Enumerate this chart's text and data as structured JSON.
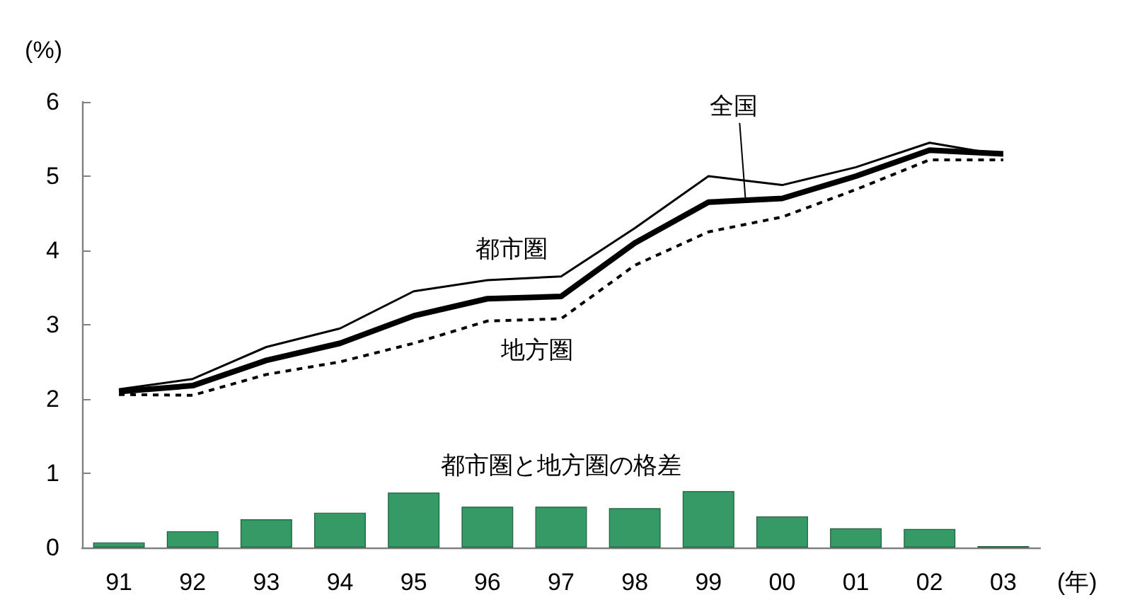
{
  "chart_data": {
    "type": "line",
    "xlabel": "(年)",
    "ylabel": "(%)",
    "categories": [
      "91",
      "92",
      "93",
      "94",
      "95",
      "96",
      "97",
      "98",
      "99",
      "00",
      "01",
      "02",
      "03"
    ],
    "ylim": [
      0,
      6
    ],
    "yticks": [
      0,
      1,
      2,
      3,
      4,
      5,
      6
    ],
    "grid": false,
    "legend": false,
    "marker": "none",
    "series": [
      {
        "name": "都市圏と地方圏の格差",
        "type": "bar",
        "color": "#359a66",
        "values": [
          0.07,
          0.22,
          0.38,
          0.47,
          0.74,
          0.55,
          0.55,
          0.53,
          0.76,
          0.42,
          0.26,
          0.25,
          0.02
        ]
      },
      {
        "name": "全国",
        "color": "#000000",
        "line_style": "solid",
        "values": [
          2.1,
          2.18,
          2.52,
          2.75,
          3.12,
          3.35,
          3.38,
          4.1,
          4.65,
          4.7,
          5.0,
          5.35,
          5.3
        ]
      },
      {
        "name": "都市圏",
        "color": "#000000",
        "line_style": "solid",
        "values": [
          2.13,
          2.27,
          2.7,
          2.95,
          3.45,
          3.6,
          3.65,
          4.3,
          5.0,
          4.88,
          5.12,
          5.45,
          5.28
        ]
      },
      {
        "name": "地方圏",
        "color": "#000000",
        "line_style": "dashed",
        "values": [
          2.06,
          2.05,
          2.33,
          2.5,
          2.75,
          3.05,
          3.08,
          3.8,
          4.25,
          4.45,
          4.82,
          5.22,
          5.22
        ]
      }
    ]
  }
}
